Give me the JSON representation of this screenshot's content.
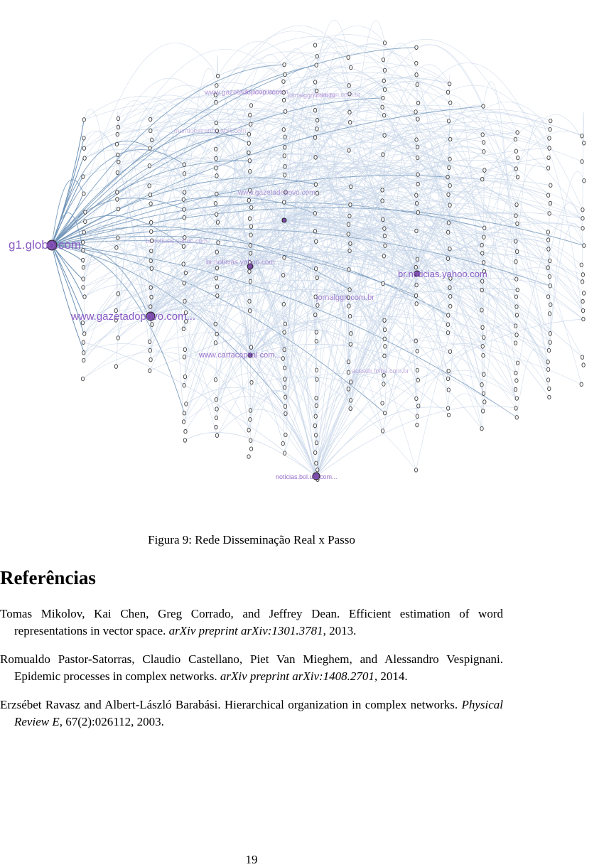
{
  "figure": {
    "node_labels": [
      "g1.globo.com",
      "www.gazetadopovo.com...",
      "br.noticias.yahoo.com",
      "noticias.bol.uol.com...",
      "www.cartacapital.com...",
      "jornalggn.com.br",
      "www.gazetadopovo.com...",
      "br.noticias.yahoo.com",
      "www.gazetadopovo.com",
      "jornalggn.com.br",
      "cartacapital.com",
      "br.noticias.yahoo.com",
      "jornalggn.com.br",
      "acesdir.folha.com.br",
      "mundoestranho.abril.com"
    ],
    "colors": {
      "edge": "#c8d6e8",
      "hub_edge": "#6f93b8",
      "node": "#7a4aa6",
      "label": "#8a5cc4"
    }
  },
  "caption": "Figura 9: Rede Disseminação Real x Passo",
  "references_title": "Referências",
  "references": [
    {
      "authors": "Tomas Mikolov, Kai Chen, Greg Corrado, and Jeffrey Dean. Efficient estimation of word representations in vector space.",
      "venue": "arXiv preprint arXiv:1301.3781",
      "rest": ", 2013."
    },
    {
      "authors": "Romualdo Pastor-Satorras, Claudio Castellano, Piet Van Mieghem, and Alessandro Vespignani. Epidemic processes in complex networks.",
      "venue": "arXiv preprint arXiv:1408.2701",
      "rest": ", 2014."
    },
    {
      "authors": "Erzsébet Ravasz and Albert-László Barabási. Hierarchical organization in complex networks.",
      "venue": "Physical Review E",
      "rest": ", 67(2):026112, 2003."
    }
  ],
  "page_number": "19"
}
